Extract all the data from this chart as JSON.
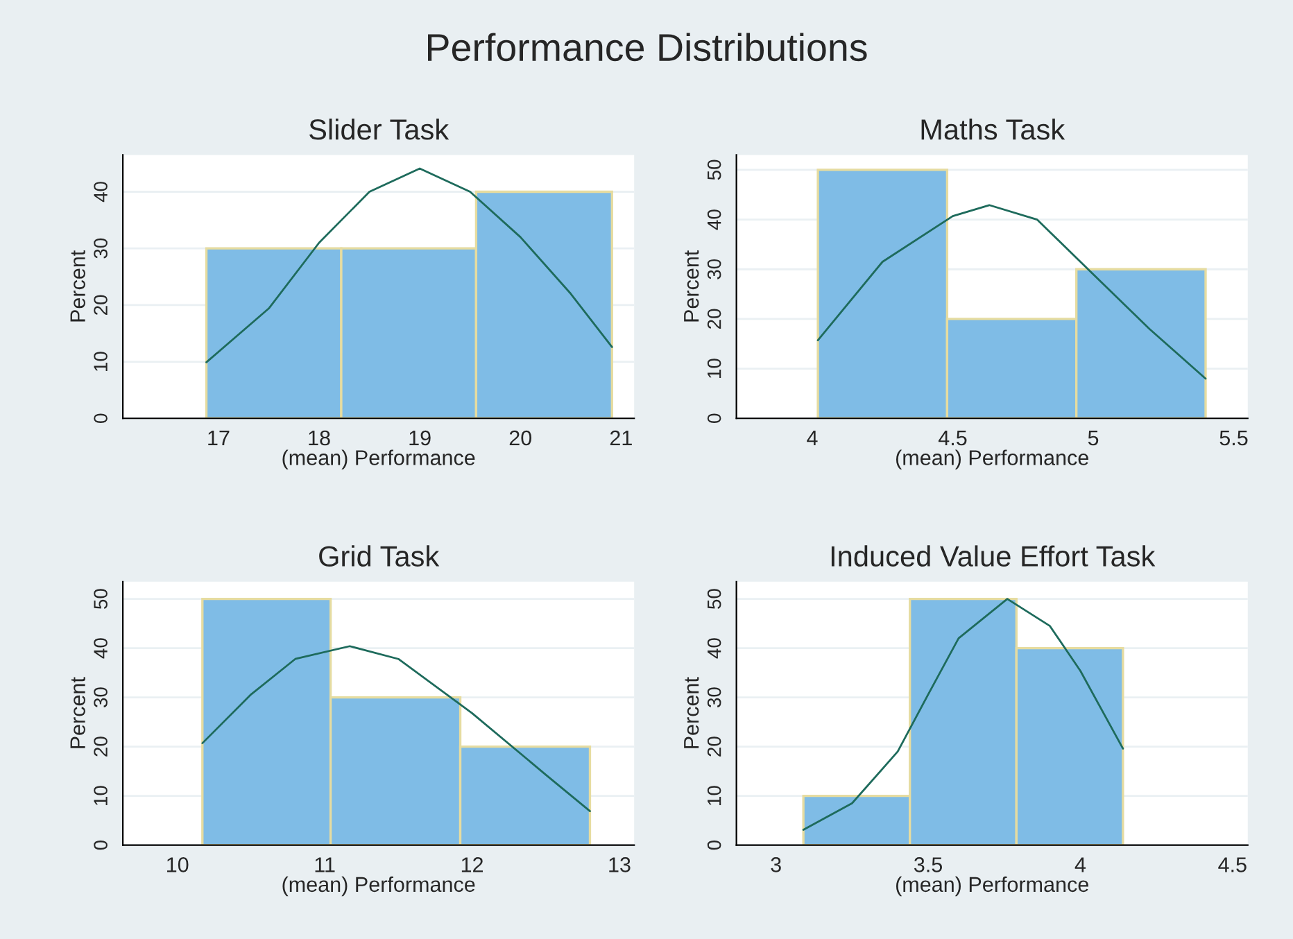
{
  "chart_data": [
    {
      "type": "histogram",
      "title": "Slider Task",
      "xlabel": "(mean) Performance",
      "ylabel": "Percent",
      "annotations": [
        "Performance Distributions"
      ],
      "bins": [
        16.88,
        18.22,
        19.56,
        20.91
      ],
      "values": [
        30,
        30,
        40
      ],
      "color": "#7fbce6",
      "xlim": [
        16.05,
        21.13
      ],
      "xticks": [
        17,
        18,
        19,
        20,
        21
      ],
      "ylim": [
        0,
        46.5
      ],
      "yticks": [
        0,
        10,
        20,
        30,
        40
      ],
      "grid": "y",
      "legend": false,
      "series": [
        {
          "type": "line",
          "color": "#1e6b5c",
          "x": [
            16.88,
            17.5,
            18,
            18.5,
            19,
            19.5,
            20,
            20.5,
            20.91
          ],
          "values": [
            9.9,
            19.4,
            31,
            40,
            44.1,
            40,
            32,
            22,
            12.6
          ]
        }
      ]
    },
    {
      "type": "histogram",
      "title": "Maths Task",
      "xlabel": "(mean) Performance",
      "ylabel": "Percent",
      "bins": [
        4.02,
        4.48,
        4.94,
        5.4
      ],
      "values": [
        50,
        20,
        30
      ],
      "color": "#7fbce6",
      "xlim": [
        3.73,
        5.55
      ],
      "xticks": [
        4,
        4.5,
        5,
        5.5
      ],
      "ylim": [
        0,
        53
      ],
      "yticks": [
        0,
        10,
        20,
        30,
        40,
        50
      ],
      "grid": "y",
      "legend": false,
      "series": [
        {
          "type": "line",
          "color": "#1e6b5c",
          "x": [
            4.02,
            4.25,
            4.5,
            4.63,
            4.8,
            5.0,
            5.2,
            5.4
          ],
          "values": [
            15.7,
            31.5,
            40.7,
            42.9,
            40,
            29,
            18,
            8
          ]
        }
      ]
    },
    {
      "type": "histogram",
      "title": "Grid Task",
      "xlabel": "(mean) Performance",
      "ylabel": "Percent",
      "bins": [
        10.17,
        11.04,
        11.92,
        12.8
      ],
      "values": [
        50,
        30,
        20
      ],
      "color": "#7fbce6",
      "xlim": [
        9.63,
        13.1
      ],
      "xticks": [
        10,
        11,
        12,
        13
      ],
      "ylim": [
        0,
        53.5
      ],
      "yticks": [
        0,
        10,
        20,
        30,
        40,
        50
      ],
      "grid": "y",
      "legend": false,
      "series": [
        {
          "type": "line",
          "color": "#1e6b5c",
          "x": [
            10.17,
            10.5,
            10.8,
            11.17,
            11.5,
            12.0,
            12.5,
            12.8
          ],
          "values": [
            20.7,
            30.6,
            37.8,
            40.4,
            37.8,
            26.8,
            14.3,
            6.9
          ]
        }
      ]
    },
    {
      "type": "histogram",
      "title": "Induced Value Effort Task",
      "xlabel": "(mean) Performance",
      "ylabel": "Percent",
      "bins": [
        3.09,
        3.44,
        3.79,
        4.14
      ],
      "values": [
        10,
        50,
        40
      ],
      "color": "#7fbce6",
      "xlim": [
        2.87,
        4.55
      ],
      "xticks": [
        3,
        3.5,
        4,
        4.5
      ],
      "ylim": [
        0,
        53.5
      ],
      "yticks": [
        0,
        10,
        20,
        30,
        40,
        50
      ],
      "grid": "y",
      "legend": false,
      "series": [
        {
          "type": "line",
          "color": "#1e6b5c",
          "x": [
            3.09,
            3.25,
            3.4,
            3.5,
            3.6,
            3.76,
            3.9,
            4.0,
            4.14
          ],
          "values": [
            3.1,
            8.5,
            19,
            30.6,
            42,
            50,
            44.5,
            35.4,
            19.6
          ]
        }
      ]
    }
  ]
}
